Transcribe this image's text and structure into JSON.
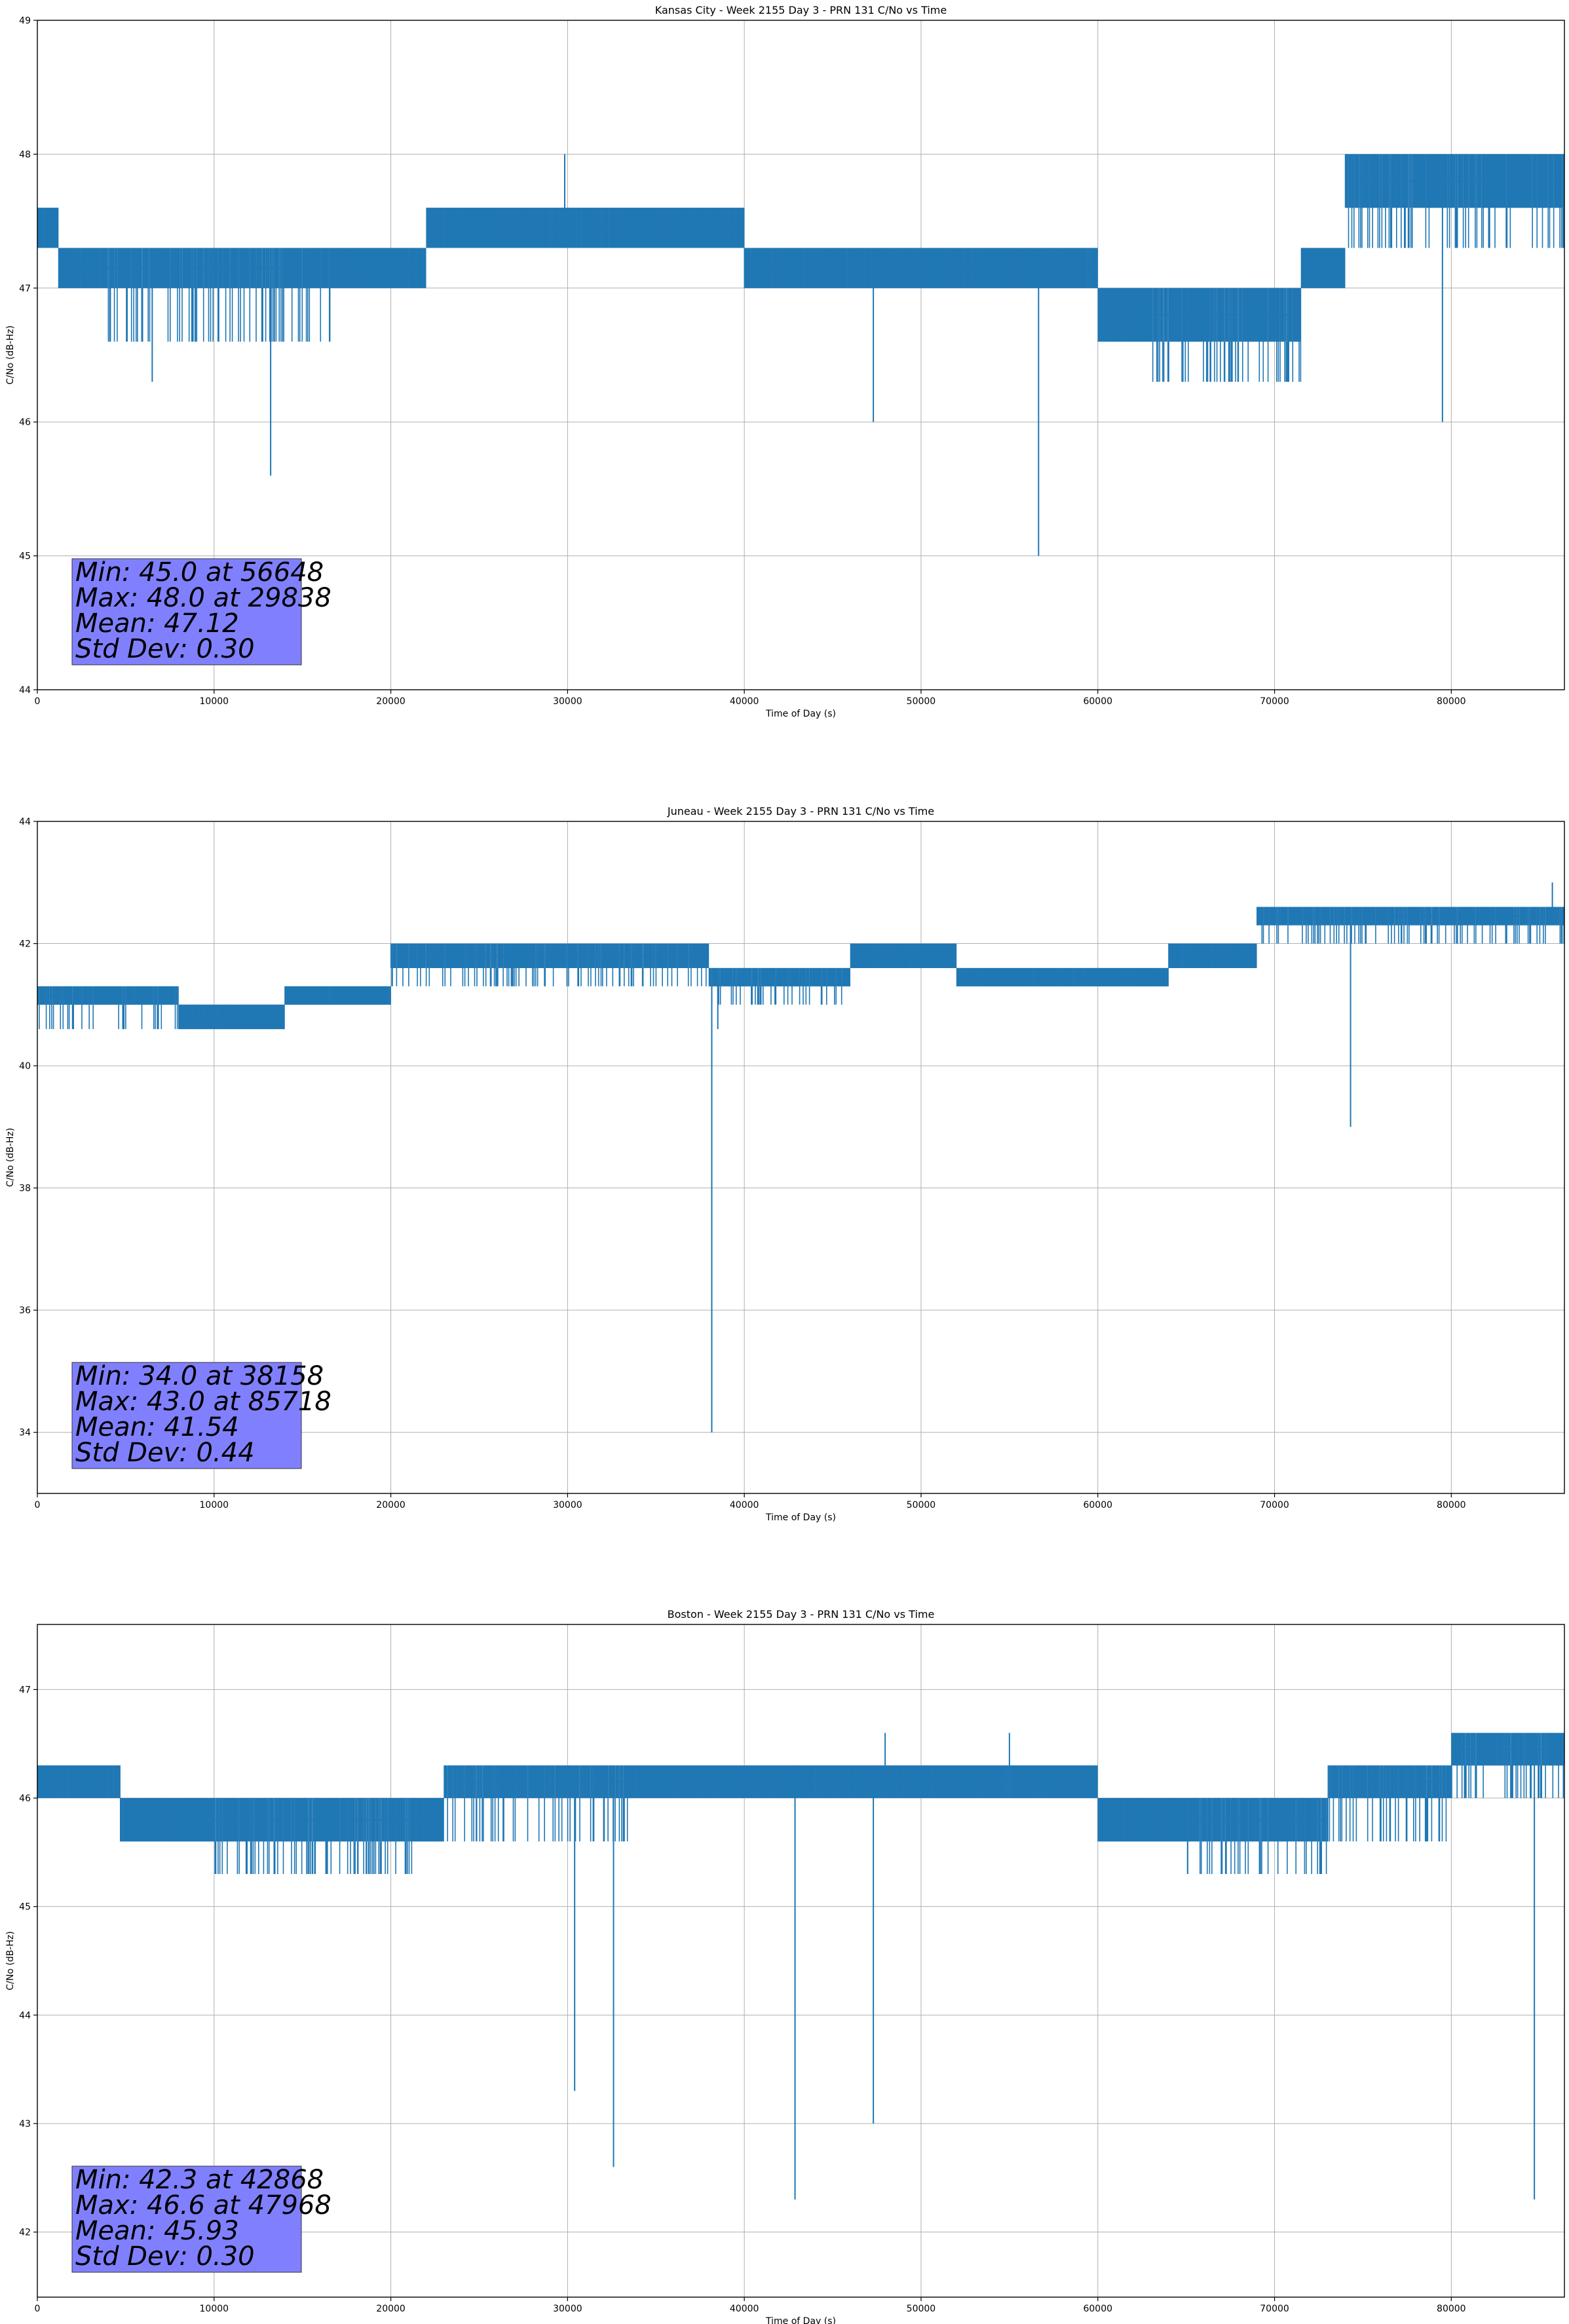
{
  "colors": {
    "series": "#1f77b4",
    "grid": "#b0b0b0",
    "statbox": "#8080ff"
  },
  "chart_data": [
    {
      "type": "line",
      "title": "Kansas City - Week 2155 Day 3 - PRN 131 C/No vs Time",
      "xlabel": "Time of Day (s)",
      "ylabel": "C/No (dB-Hz)",
      "xlim": [
        0,
        86400
      ],
      "ylim": [
        44,
        49
      ],
      "xticks": [
        0,
        10000,
        20000,
        30000,
        40000,
        50000,
        60000,
        70000,
        80000
      ],
      "yticks": [
        44,
        45,
        46,
        47,
        48,
        49
      ],
      "grid": true,
      "segments": [
        {
          "x": [
            0,
            1200
          ],
          "levels": [
            47.3,
            47.6
          ]
        },
        {
          "x": [
            1200,
            4000
          ],
          "levels": [
            47.0,
            47.3
          ]
        },
        {
          "x": [
            4000,
            17000
          ],
          "levels": [
            46.6,
            47.0,
            47.3
          ]
        },
        {
          "x": [
            17000,
            22000
          ],
          "levels": [
            47.0,
            47.3
          ]
        },
        {
          "x": [
            22000,
            29000
          ],
          "levels": [
            47.3,
            47.6
          ]
        },
        {
          "x": [
            29000,
            40000
          ],
          "levels": [
            47.3,
            47.6
          ]
        },
        {
          "x": [
            40000,
            60000
          ],
          "levels": [
            47.0,
            47.3
          ]
        },
        {
          "x": [
            60000,
            63000
          ],
          "levels": [
            46.6,
            47.0
          ]
        },
        {
          "x": [
            63000,
            71500
          ],
          "levels": [
            46.3,
            46.6,
            47.0
          ]
        },
        {
          "x": [
            71500,
            74000
          ],
          "levels": [
            47.0,
            47.3
          ]
        },
        {
          "x": [
            74000,
            83000
          ],
          "levels": [
            47.3,
            47.6,
            48.0
          ]
        },
        {
          "x": [
            83000,
            86400
          ],
          "levels": [
            47.3,
            47.6,
            48.0
          ]
        }
      ],
      "spikes": [
        {
          "x": 56648,
          "y": 45.0
        },
        {
          "x": 13200,
          "y": 45.6
        },
        {
          "x": 47300,
          "y": 46.0
        },
        {
          "x": 79500,
          "y": 46.0
        },
        {
          "x": 6500,
          "y": 46.3
        },
        {
          "x": 29838,
          "y": 48.0
        }
      ],
      "stats": {
        "min": "Min: 45.0 at 56648",
        "max": "Max: 48.0 at 29838",
        "mean": "Mean: 47.12",
        "std": "Std Dev: 0.30"
      }
    },
    {
      "type": "line",
      "title": "Juneau - Week 2155 Day 3 - PRN 131 C/No vs Time",
      "xlabel": "Time of Day (s)",
      "ylabel": "C/No (dB-Hz)",
      "xlim": [
        0,
        86400
      ],
      "ylim": [
        33,
        44
      ],
      "xticks": [
        0,
        10000,
        20000,
        30000,
        40000,
        50000,
        60000,
        70000,
        80000
      ],
      "yticks": [
        34,
        36,
        38,
        40,
        42,
        44
      ],
      "grid": true,
      "segments": [
        {
          "x": [
            0,
            8000
          ],
          "levels": [
            40.6,
            41.0,
            41.3
          ]
        },
        {
          "x": [
            8000,
            14000
          ],
          "levels": [
            40.6,
            41.0
          ]
        },
        {
          "x": [
            14000,
            20000
          ],
          "levels": [
            41.0,
            41.3
          ]
        },
        {
          "x": [
            20000,
            38000
          ],
          "levels": [
            41.3,
            41.6,
            42.0
          ]
        },
        {
          "x": [
            38000,
            46000
          ],
          "levels": [
            41.0,
            41.3,
            41.6
          ]
        },
        {
          "x": [
            46000,
            52000
          ],
          "levels": [
            41.6,
            42.0
          ]
        },
        {
          "x": [
            52000,
            64000
          ],
          "levels": [
            41.3,
            41.6
          ]
        },
        {
          "x": [
            64000,
            69000
          ],
          "levels": [
            41.6,
            42.0
          ]
        },
        {
          "x": [
            69000,
            86400
          ],
          "levels": [
            42.0,
            42.3,
            42.6
          ]
        }
      ],
      "spikes": [
        {
          "x": 38158,
          "y": 34.0
        },
        {
          "x": 74300,
          "y": 39.0
        },
        {
          "x": 38500,
          "y": 40.6
        },
        {
          "x": 85718,
          "y": 43.0
        }
      ],
      "stats": {
        "min": "Min: 34.0 at 38158",
        "max": "Max: 43.0 at 85718",
        "mean": "Mean: 41.54",
        "std": "Std Dev: 0.44"
      }
    },
    {
      "type": "line",
      "title": "Boston - Week 2155 Day 3 - PRN 131 C/No vs Time",
      "xlabel": "Time of Day (s)",
      "ylabel": "C/No (dB-Hz)",
      "xlim": [
        0,
        86400
      ],
      "ylim": [
        41.4,
        47.6
      ],
      "xticks": [
        0,
        10000,
        20000,
        30000,
        40000,
        50000,
        60000,
        70000,
        80000
      ],
      "yticks": [
        42,
        43,
        44,
        45,
        46,
        47
      ],
      "grid": true,
      "segments": [
        {
          "x": [
            0,
            4700
          ],
          "levels": [
            46.0,
            46.3
          ]
        },
        {
          "x": [
            4700,
            10000
          ],
          "levels": [
            45.6,
            46.0
          ]
        },
        {
          "x": [
            10000,
            21200
          ],
          "levels": [
            45.3,
            45.6,
            46.0
          ]
        },
        {
          "x": [
            21200,
            23000
          ],
          "levels": [
            45.6,
            46.0
          ]
        },
        {
          "x": [
            23000,
            34000
          ],
          "levels": [
            45.6,
            46.0,
            46.3
          ]
        },
        {
          "x": [
            34000,
            60000
          ],
          "levels": [
            46.0,
            46.3
          ]
        },
        {
          "x": [
            60000,
            65000
          ],
          "levels": [
            45.6,
            46.0
          ]
        },
        {
          "x": [
            65000,
            73000
          ],
          "levels": [
            45.3,
            45.6,
            46.0
          ]
        },
        {
          "x": [
            73000,
            80000
          ],
          "levels": [
            45.6,
            46.0,
            46.3
          ]
        },
        {
          "x": [
            80000,
            86400
          ],
          "levels": [
            46.0,
            46.3,
            46.6
          ]
        }
      ],
      "spikes": [
        {
          "x": 42868,
          "y": 42.3
        },
        {
          "x": 84700,
          "y": 42.3
        },
        {
          "x": 32600,
          "y": 42.6
        },
        {
          "x": 47300,
          "y": 43.0
        },
        {
          "x": 30400,
          "y": 43.3
        },
        {
          "x": 47968,
          "y": 46.6
        },
        {
          "x": 55000,
          "y": 46.6
        }
      ],
      "stats": {
        "min": "Min: 42.3 at 42868",
        "max": "Max: 46.6 at 47968",
        "mean": "Mean: 45.93",
        "std": "Std Dev: 0.30"
      }
    }
  ]
}
